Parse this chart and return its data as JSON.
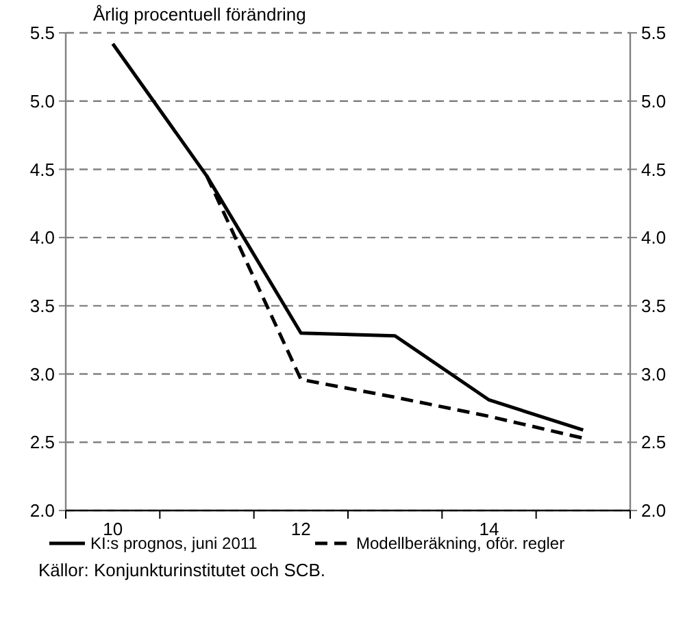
{
  "chart_data": {
    "type": "line",
    "title": "Årlig procentuell förändring",
    "categories": [
      "10",
      null,
      "12",
      null,
      "14",
      null
    ],
    "series": [
      {
        "name": "KI:s prognos, juni 2011",
        "color": "#000000",
        "line_style": "solid",
        "values": [
          5.42,
          4.45,
          3.3,
          3.28,
          2.81,
          2.59
        ]
      },
      {
        "name": "Modellberäkning, oför. regler",
        "color": "#000000",
        "line_style": "dashed",
        "values": [
          null,
          4.45,
          2.96,
          2.83,
          2.69,
          2.53
        ]
      }
    ],
    "ylim": [
      2.0,
      5.5
    ],
    "yticks": [
      {
        "value": 2,
        "label": "2.0"
      },
      {
        "value": 2.5,
        "label": "2.5"
      },
      {
        "value": 3,
        "label": "3.0"
      },
      {
        "value": 3.5,
        "label": "3.5"
      },
      {
        "value": 4,
        "label": "4.0"
      },
      {
        "value": 4.5,
        "label": "4.5"
      },
      {
        "value": 5,
        "label": "5.0"
      },
      {
        "value": 5.5,
        "label": "5.5"
      }
    ],
    "y2lim": [
      2.0,
      5.5
    ],
    "y2ticks": [
      {
        "value": 2,
        "label": "2.0"
      },
      {
        "value": 2.5,
        "label": "2.5"
      },
      {
        "value": 3,
        "label": "3.0"
      },
      {
        "value": 3.5,
        "label": "3.5"
      },
      {
        "value": 4,
        "label": "4.0"
      },
      {
        "value": 4.5,
        "label": "4.5"
      },
      {
        "value": 5,
        "label": "5.0"
      },
      {
        "value": 5.5,
        "label": "5.5"
      }
    ],
    "grid": "y",
    "legend": "bottom",
    "marker": "none",
    "annotations": [
      "Källor: Konjunkturinstitutet och SCB."
    ]
  }
}
